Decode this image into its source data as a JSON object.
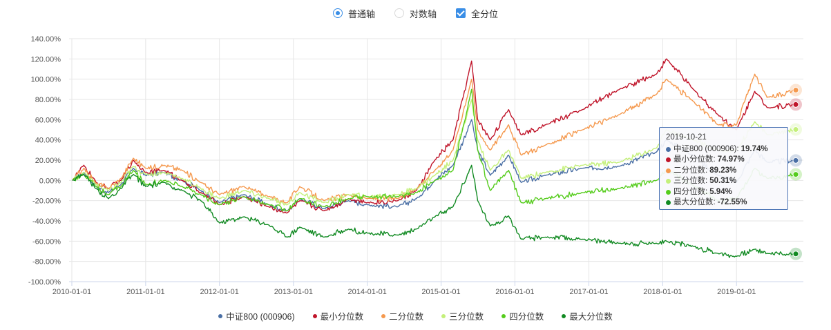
{
  "controls": {
    "linear_label": "普通轴",
    "log_label": "对数轴",
    "all_quantile_label": "全分位",
    "selected_axis": "linear",
    "all_quantile_checked": true
  },
  "chart_data": {
    "type": "line",
    "x_start": "2010-01-01",
    "x_end": "2019-10-21",
    "x_ticks": [
      "2010-01-01",
      "2011-01-01",
      "2012-01-01",
      "2013-01-01",
      "2014-01-01",
      "2015-01-01",
      "2016-01-01",
      "2017-01-01",
      "2018-01-01",
      "2019-01-01"
    ],
    "y_ticks": [
      "140.00%",
      "120.00%",
      "100.00%",
      "80.00%",
      "60.00%",
      "40.00%",
      "20.00%",
      "0.00%",
      "-20.00%",
      "-40.00%",
      "-60.00%",
      "-80.00%",
      "-100.00%"
    ],
    "ylim": [
      -100,
      140
    ],
    "unit": "%",
    "grid": true,
    "legend_position": "bottom",
    "series": [
      {
        "name": "中证800 (000906)",
        "color": "#4a6fa5",
        "points": [
          [
            "2010-01-04",
            0
          ],
          [
            "2010-03-01",
            8
          ],
          [
            "2010-05-01",
            -6
          ],
          [
            "2010-07-01",
            -12
          ],
          [
            "2010-09-01",
            -4
          ],
          [
            "2010-11-01",
            12
          ],
          [
            "2011-01-01",
            5
          ],
          [
            "2011-04-01",
            8
          ],
          [
            "2011-07-01",
            0
          ],
          [
            "2011-10-01",
            -10
          ],
          [
            "2012-01-01",
            -22
          ],
          [
            "2012-05-01",
            -14
          ],
          [
            "2012-09-01",
            -24
          ],
          [
            "2012-12-01",
            -30
          ],
          [
            "2013-02-01",
            -18
          ],
          [
            "2013-06-01",
            -28
          ],
          [
            "2013-10-01",
            -20
          ],
          [
            "2014-01-01",
            -24
          ],
          [
            "2014-06-01",
            -26
          ],
          [
            "2014-09-01",
            -18
          ],
          [
            "2014-12-01",
            0
          ],
          [
            "2015-03-01",
            15
          ],
          [
            "2015-06-01",
            60
          ],
          [
            "2015-07-01",
            30
          ],
          [
            "2015-09-01",
            5
          ],
          [
            "2015-12-01",
            25
          ],
          [
            "2016-02-01",
            -2
          ],
          [
            "2016-06-01",
            5
          ],
          [
            "2016-12-01",
            12
          ],
          [
            "2017-06-01",
            14
          ],
          [
            "2017-12-01",
            28
          ],
          [
            "2018-01-20",
            40
          ],
          [
            "2018-06-01",
            25
          ],
          [
            "2018-10-01",
            5
          ],
          [
            "2019-01-01",
            -2
          ],
          [
            "2019-04-01",
            30
          ],
          [
            "2019-06-01",
            18
          ],
          [
            "2019-10-21",
            19.74
          ]
        ]
      },
      {
        "name": "最小分位数",
        "color": "#c0152a",
        "points": [
          [
            "2010-01-04",
            0
          ],
          [
            "2010-03-01",
            15
          ],
          [
            "2010-05-01",
            -2
          ],
          [
            "2010-07-01",
            -8
          ],
          [
            "2010-09-01",
            0
          ],
          [
            "2010-11-01",
            20
          ],
          [
            "2011-01-01",
            8
          ],
          [
            "2011-04-01",
            10
          ],
          [
            "2011-07-01",
            0
          ],
          [
            "2011-10-01",
            -12
          ],
          [
            "2012-01-01",
            -24
          ],
          [
            "2012-05-01",
            -16
          ],
          [
            "2012-09-01",
            -26
          ],
          [
            "2012-12-01",
            -32
          ],
          [
            "2013-02-01",
            -20
          ],
          [
            "2013-06-01",
            -30
          ],
          [
            "2013-10-01",
            -18
          ],
          [
            "2014-01-01",
            -22
          ],
          [
            "2014-06-01",
            -20
          ],
          [
            "2014-09-01",
            -10
          ],
          [
            "2014-12-01",
            20
          ],
          [
            "2015-03-01",
            40
          ],
          [
            "2015-06-01",
            118
          ],
          [
            "2015-07-01",
            60
          ],
          [
            "2015-09-01",
            40
          ],
          [
            "2015-12-01",
            70
          ],
          [
            "2016-02-01",
            45
          ],
          [
            "2016-06-01",
            55
          ],
          [
            "2016-12-01",
            70
          ],
          [
            "2017-06-01",
            90
          ],
          [
            "2017-12-01",
            105
          ],
          [
            "2018-01-20",
            120
          ],
          [
            "2018-06-01",
            90
          ],
          [
            "2018-10-01",
            65
          ],
          [
            "2019-01-01",
            50
          ],
          [
            "2019-04-01",
            88
          ],
          [
            "2019-06-01",
            72
          ],
          [
            "2019-10-21",
            74.97
          ]
        ]
      },
      {
        "name": "二分位数",
        "color": "#f5994e",
        "points": [
          [
            "2010-01-04",
            0
          ],
          [
            "2010-03-01",
            12
          ],
          [
            "2010-05-01",
            -3
          ],
          [
            "2010-07-01",
            -8
          ],
          [
            "2010-09-01",
            2
          ],
          [
            "2010-11-01",
            22
          ],
          [
            "2011-01-01",
            12
          ],
          [
            "2011-04-01",
            15
          ],
          [
            "2011-07-01",
            10
          ],
          [
            "2011-10-01",
            -2
          ],
          [
            "2012-01-01",
            -14
          ],
          [
            "2012-05-01",
            -6
          ],
          [
            "2012-09-01",
            -16
          ],
          [
            "2012-12-01",
            -22
          ],
          [
            "2013-02-01",
            -6
          ],
          [
            "2013-06-01",
            -20
          ],
          [
            "2013-10-01",
            -14
          ],
          [
            "2014-01-01",
            -18
          ],
          [
            "2014-06-01",
            -18
          ],
          [
            "2014-09-01",
            -8
          ],
          [
            "2014-12-01",
            10
          ],
          [
            "2015-03-01",
            30
          ],
          [
            "2015-06-01",
            100
          ],
          [
            "2015-07-01",
            50
          ],
          [
            "2015-09-01",
            30
          ],
          [
            "2015-12-01",
            55
          ],
          [
            "2016-02-01",
            25
          ],
          [
            "2016-06-01",
            35
          ],
          [
            "2016-12-01",
            50
          ],
          [
            "2017-06-01",
            65
          ],
          [
            "2017-12-01",
            85
          ],
          [
            "2018-01-20",
            100
          ],
          [
            "2018-06-01",
            78
          ],
          [
            "2018-10-01",
            55
          ],
          [
            "2019-01-01",
            55
          ],
          [
            "2019-04-01",
            105
          ],
          [
            "2019-06-01",
            82
          ],
          [
            "2019-10-21",
            89.23
          ]
        ]
      },
      {
        "name": "三分位数",
        "color": "#c4f07a",
        "points": [
          [
            "2010-01-04",
            0
          ],
          [
            "2010-03-01",
            8
          ],
          [
            "2010-05-01",
            -4
          ],
          [
            "2010-07-01",
            -10
          ],
          [
            "2010-09-01",
            -2
          ],
          [
            "2010-11-01",
            14
          ],
          [
            "2011-01-01",
            6
          ],
          [
            "2011-04-01",
            8
          ],
          [
            "2011-07-01",
            2
          ],
          [
            "2011-10-01",
            -8
          ],
          [
            "2012-01-01",
            -18
          ],
          [
            "2012-05-01",
            -10
          ],
          [
            "2012-09-01",
            -18
          ],
          [
            "2012-12-01",
            -24
          ],
          [
            "2013-02-01",
            -12
          ],
          [
            "2013-06-01",
            -22
          ],
          [
            "2013-10-01",
            -14
          ],
          [
            "2014-01-01",
            -16
          ],
          [
            "2014-06-01",
            -14
          ],
          [
            "2014-09-01",
            -8
          ],
          [
            "2014-12-01",
            5
          ],
          [
            "2015-03-01",
            20
          ],
          [
            "2015-06-01",
            80
          ],
          [
            "2015-07-01",
            40
          ],
          [
            "2015-09-01",
            10
          ],
          [
            "2015-12-01",
            30
          ],
          [
            "2016-02-01",
            2
          ],
          [
            "2016-06-01",
            8
          ],
          [
            "2016-12-01",
            15
          ],
          [
            "2017-06-01",
            18
          ],
          [
            "2017-12-01",
            32
          ],
          [
            "2018-01-20",
            50
          ],
          [
            "2018-06-01",
            40
          ],
          [
            "2018-10-01",
            30
          ],
          [
            "2019-01-01",
            30
          ],
          [
            "2019-04-01",
            58
          ],
          [
            "2019-06-01",
            45
          ],
          [
            "2019-10-21",
            50.31
          ]
        ]
      },
      {
        "name": "四分位数",
        "color": "#55cc1c",
        "points": [
          [
            "2010-01-04",
            0
          ],
          [
            "2010-03-01",
            6
          ],
          [
            "2010-05-01",
            -6
          ],
          [
            "2010-07-01",
            -14
          ],
          [
            "2010-09-01",
            -6
          ],
          [
            "2010-11-01",
            10
          ],
          [
            "2011-01-01",
            -4
          ],
          [
            "2011-04-01",
            0
          ],
          [
            "2011-07-01",
            -6
          ],
          [
            "2011-10-01",
            -14
          ],
          [
            "2012-01-01",
            -24
          ],
          [
            "2012-05-01",
            -16
          ],
          [
            "2012-09-01",
            -24
          ],
          [
            "2012-12-01",
            -30
          ],
          [
            "2013-02-01",
            -18
          ],
          [
            "2013-06-01",
            -26
          ],
          [
            "2013-10-01",
            -18
          ],
          [
            "2014-01-01",
            -16
          ],
          [
            "2014-06-01",
            -16
          ],
          [
            "2014-09-01",
            -12
          ],
          [
            "2014-12-01",
            0
          ],
          [
            "2015-03-01",
            10
          ],
          [
            "2015-06-01",
            90
          ],
          [
            "2015-07-01",
            30
          ],
          [
            "2015-09-01",
            -10
          ],
          [
            "2015-12-01",
            10
          ],
          [
            "2016-02-01",
            -22
          ],
          [
            "2016-06-01",
            -18
          ],
          [
            "2016-12-01",
            -12
          ],
          [
            "2017-06-01",
            -8
          ],
          [
            "2017-12-01",
            0
          ],
          [
            "2018-01-20",
            10
          ],
          [
            "2018-06-01",
            -5
          ],
          [
            "2018-10-01",
            -20
          ],
          [
            "2019-01-01",
            -18
          ],
          [
            "2019-04-01",
            12
          ],
          [
            "2019-06-01",
            2
          ],
          [
            "2019-10-21",
            5.94
          ]
        ]
      },
      {
        "name": "最大分位数",
        "color": "#118a22",
        "points": [
          [
            "2010-01-04",
            0
          ],
          [
            "2010-03-01",
            6
          ],
          [
            "2010-05-01",
            -8
          ],
          [
            "2010-07-01",
            -18
          ],
          [
            "2010-09-01",
            -8
          ],
          [
            "2010-11-01",
            6
          ],
          [
            "2011-01-01",
            -6
          ],
          [
            "2011-04-01",
            -2
          ],
          [
            "2011-07-01",
            -10
          ],
          [
            "2011-10-01",
            -20
          ],
          [
            "2012-01-01",
            -42
          ],
          [
            "2012-05-01",
            -36
          ],
          [
            "2012-09-01",
            -44
          ],
          [
            "2012-12-01",
            -56
          ],
          [
            "2013-02-01",
            -46
          ],
          [
            "2013-06-01",
            -56
          ],
          [
            "2013-10-01",
            -48
          ],
          [
            "2014-01-01",
            -52
          ],
          [
            "2014-06-01",
            -54
          ],
          [
            "2014-09-01",
            -48
          ],
          [
            "2014-12-01",
            -36
          ],
          [
            "2015-03-01",
            -26
          ],
          [
            "2015-06-01",
            15
          ],
          [
            "2015-07-01",
            -20
          ],
          [
            "2015-09-01",
            -45
          ],
          [
            "2015-12-01",
            -35
          ],
          [
            "2016-02-01",
            -58
          ],
          [
            "2016-06-01",
            -56
          ],
          [
            "2016-12-01",
            -58
          ],
          [
            "2017-06-01",
            -62
          ],
          [
            "2017-12-01",
            -62
          ],
          [
            "2018-01-20",
            -60
          ],
          [
            "2018-06-01",
            -65
          ],
          [
            "2018-10-01",
            -72
          ],
          [
            "2019-01-01",
            -75
          ],
          [
            "2019-04-01",
            -68
          ],
          [
            "2019-06-01",
            -72
          ],
          [
            "2019-10-21",
            -72.55
          ]
        ]
      }
    ]
  },
  "tooltip": {
    "date": "2019-10-21",
    "rows": [
      {
        "label": "中证800 (000906):",
        "value": "19.74%",
        "color": "#4a6fa5"
      },
      {
        "label": "最小分位数:",
        "value": "74.97%",
        "color": "#c0152a"
      },
      {
        "label": "二分位数:",
        "value": "89.23%",
        "color": "#f5994e"
      },
      {
        "label": "三分位数:",
        "value": "50.31%",
        "color": "#c4f07a"
      },
      {
        "label": "四分位数:",
        "value": "5.94%",
        "color": "#55cc1c"
      },
      {
        "label": "最大分位数:",
        "value": "-72.55%",
        "color": "#118a22"
      }
    ]
  },
  "legend": [
    {
      "label": "中证800 (000906)",
      "color": "#4a6fa5"
    },
    {
      "label": "最小分位数",
      "color": "#c0152a"
    },
    {
      "label": "二分位数",
      "color": "#f5994e"
    },
    {
      "label": "三分位数",
      "color": "#c4f07a"
    },
    {
      "label": "四分位数",
      "color": "#55cc1c"
    },
    {
      "label": "最大分位数",
      "color": "#118a22"
    }
  ]
}
